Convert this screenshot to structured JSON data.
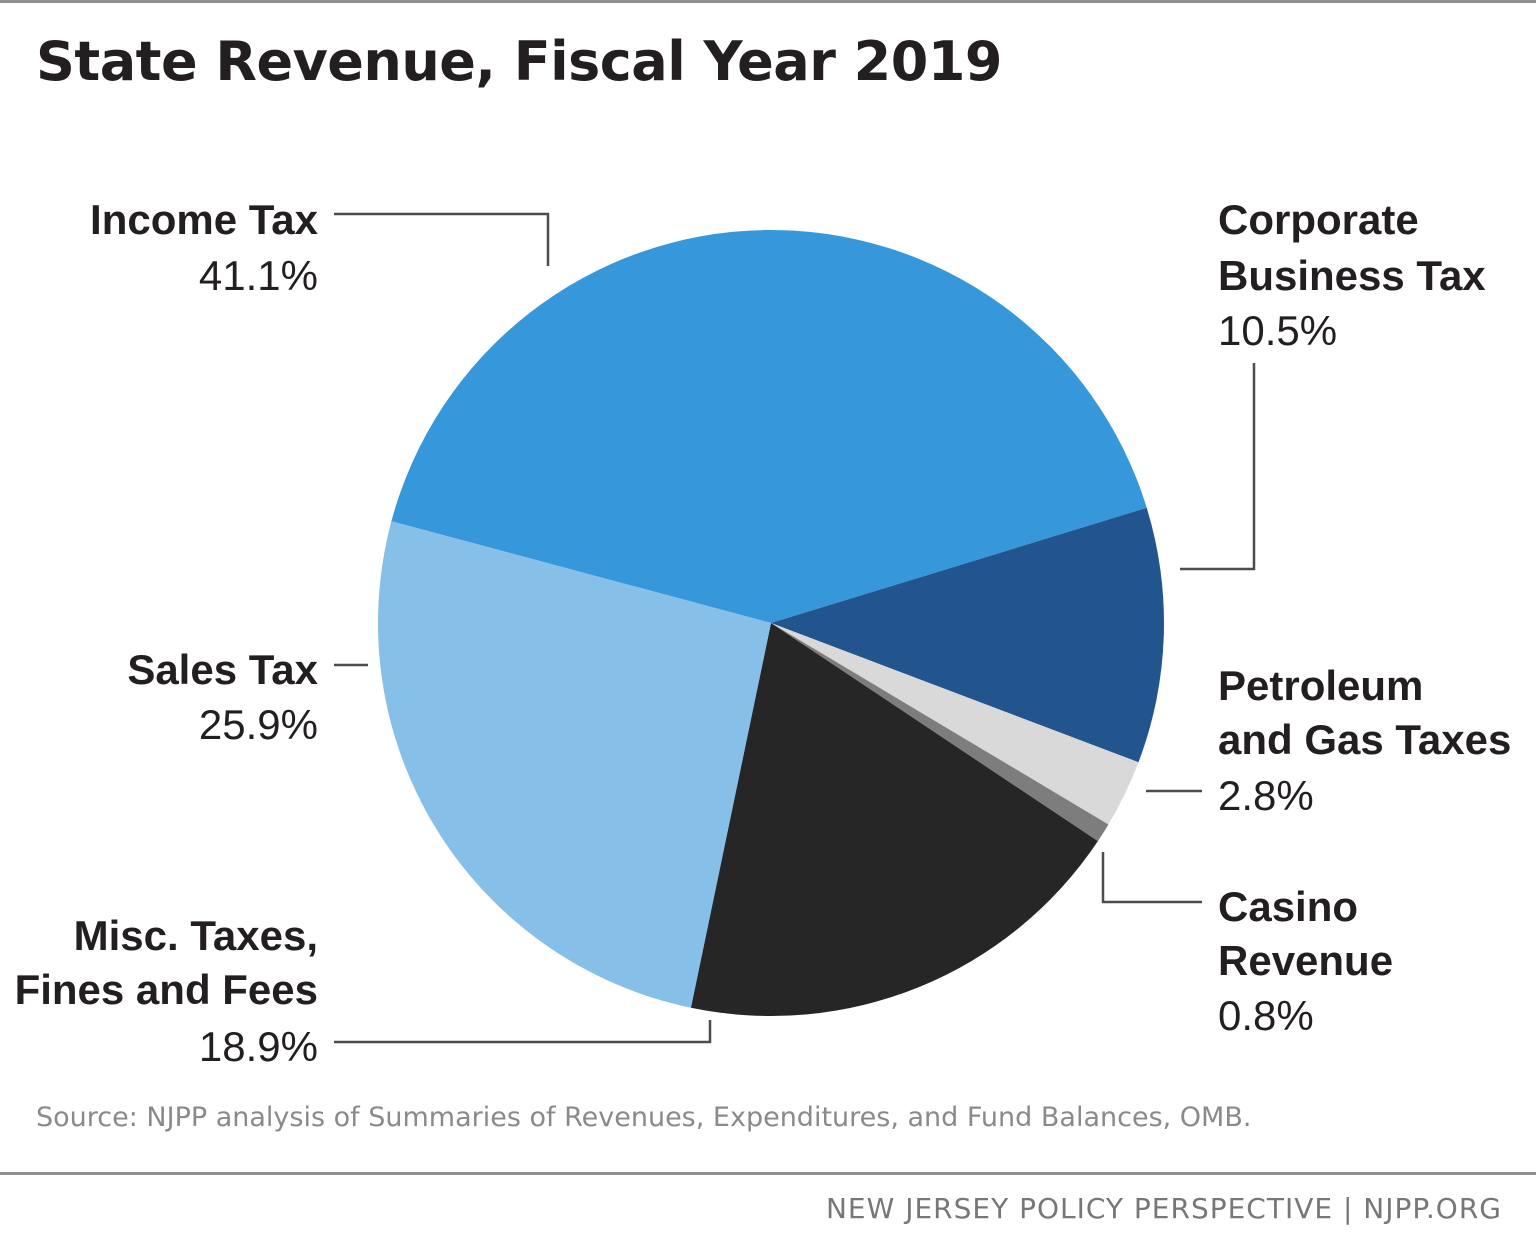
{
  "chart_data": {
    "type": "pie",
    "title": "State Revenue, Fiscal Year 2019",
    "unit": "%",
    "slices": [
      {
        "name": "Income Tax",
        "value": 41.1,
        "label": "41.1%",
        "color": "#3698db"
      },
      {
        "name": "Corporate Business Tax",
        "value": 10.5,
        "label": "10.5%",
        "color": "#22548e"
      },
      {
        "name": "Petroleum and Gas Taxes",
        "value": 2.8,
        "label": "2.8%",
        "color": "#d9d9d9"
      },
      {
        "name": "Casino Revenue",
        "value": 0.8,
        "label": "0.8%",
        "color": "#7d7d7d"
      },
      {
        "name": "Misc. Taxes, Fines and Fees",
        "value": 18.9,
        "label": "18.9%",
        "color": "#262626"
      },
      {
        "name": "Sales Tax",
        "value": 25.9,
        "label": "25.9%",
        "color": "#86bfe8"
      }
    ],
    "labels": {
      "income": {
        "lines": [
          "Income Tax"
        ],
        "value": "41.1%"
      },
      "corporate": {
        "lines": [
          "Corporate",
          "Business Tax"
        ],
        "value": "10.5%"
      },
      "petroleum": {
        "lines": [
          "Petroleum",
          "and Gas Taxes"
        ],
        "value": "2.8%"
      },
      "casino": {
        "lines": [
          "Casino",
          "Revenue"
        ],
        "value": "0.8%"
      },
      "misc": {
        "lines": [
          "Misc. Taxes,",
          "Fines and Fees"
        ],
        "value": "18.9%"
      },
      "sales": {
        "lines": [
          "Sales Tax"
        ],
        "value": "25.9%"
      }
    },
    "source": "Source: NJPP analysis of Summaries of Revenues, Expenditures, and Fund Balances, OMB."
  },
  "footer": "NEW JERSEY POLICY PERSPECTIVE | NJPP.ORG"
}
